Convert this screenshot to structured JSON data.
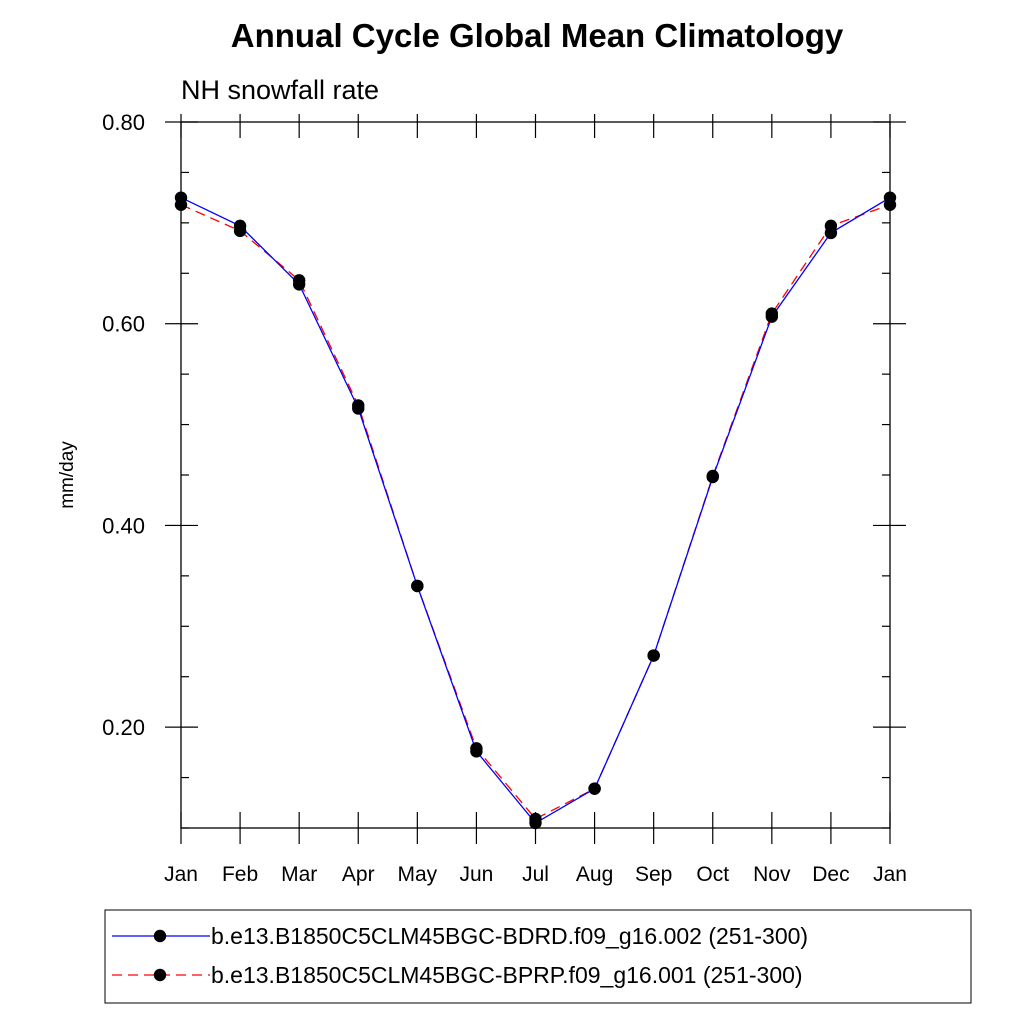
{
  "chart_data": {
    "type": "line",
    "title": "Annual Cycle Global Mean Climatology",
    "subtitle": "NH snowfall rate",
    "ylabel": "mm/day",
    "xlabel": "",
    "ylim": [
      0.1,
      0.8
    ],
    "yticks": [
      0.2,
      0.4,
      0.6,
      0.8
    ],
    "ytick_labels": [
      "0.20",
      "0.40",
      "0.60",
      "0.80"
    ],
    "categories": [
      "Jan",
      "Feb",
      "Mar",
      "Apr",
      "May",
      "Jun",
      "Jul",
      "Aug",
      "Sep",
      "Oct",
      "Nov",
      "Dec",
      "Jan"
    ],
    "series": [
      {
        "name": "b.e13.B1850C5CLM45BGC-BDRD.f09_g16.002 (251-300)",
        "color": "#0000ff",
        "dash": "solid",
        "values": [
          0.725,
          0.697,
          0.639,
          0.516,
          0.34,
          0.176,
          0.105,
          0.139,
          0.271,
          0.448,
          0.607,
          0.69,
          0.725
        ]
      },
      {
        "name": "b.e13.B1850C5CLM45BGC-BPRP.f09_g16.001 (251-300)",
        "color": "#ff0000",
        "dash": "dashed",
        "values": [
          0.718,
          0.692,
          0.643,
          0.519,
          0.34,
          0.179,
          0.109,
          0.139,
          0.271,
          0.449,
          0.61,
          0.697,
          0.718
        ]
      }
    ],
    "legend_position": "bottom",
    "grid": false
  }
}
